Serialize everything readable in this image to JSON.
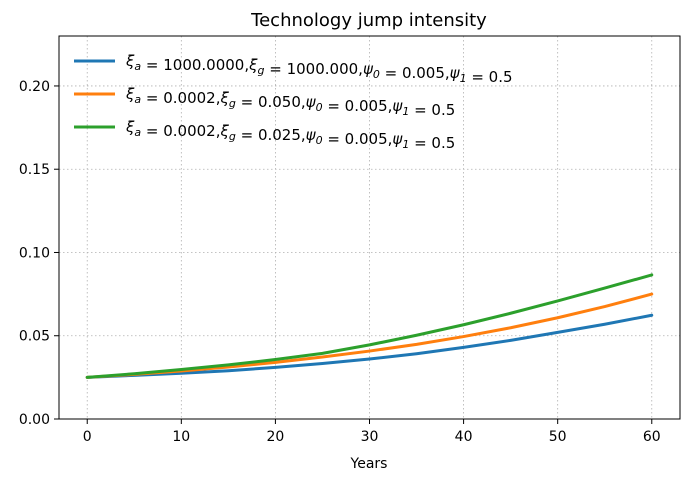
{
  "chart_data": {
    "type": "line",
    "title": "Technology jump intensity",
    "xlabel": "Years",
    "ylabel": "",
    "xlim": [
      -3,
      63
    ],
    "ylim": [
      0,
      0.23
    ],
    "xticks": [
      0,
      10,
      20,
      30,
      40,
      50,
      60
    ],
    "xtick_labels": [
      "0",
      "10",
      "20",
      "30",
      "40",
      "50",
      "60"
    ],
    "yticks": [
      0,
      0.05,
      0.1,
      0.15,
      0.2
    ],
    "ytick_labels": [
      "0.00",
      "0.05",
      "0.10",
      "0.15",
      "0.20"
    ],
    "grid": true,
    "legend_position": "top-left",
    "x": [
      0,
      5,
      10,
      15,
      20,
      25,
      30,
      35,
      40,
      45,
      50,
      55,
      60
    ],
    "series": [
      {
        "name": "ξa = 1000.0000,ξg = 1000.000,ψ0 = 0.005,ψ1 = 0.5",
        "legend_parts": {
          "xa": "1000.0000",
          "xg": "1000.000",
          "p0": "0.005",
          "p1": "0.5"
        },
        "color": "#1f77b4",
        "values": [
          0.025,
          0.0262,
          0.0275,
          0.029,
          0.031,
          0.0333,
          0.036,
          0.0392,
          0.043,
          0.0472,
          0.052,
          0.0569,
          0.0623
        ]
      },
      {
        "name": "ξa = 0.0002,ξg = 0.050,ψ0 = 0.005,ψ1 = 0.5",
        "legend_parts": {
          "xa": "0.0002",
          "xg": "0.050",
          "p0": "0.005",
          "p1": "0.5"
        },
        "color": "#ff7f0e",
        "values": [
          0.025,
          0.0268,
          0.0288,
          0.0312,
          0.034,
          0.0372,
          0.0408,
          0.0448,
          0.0495,
          0.0548,
          0.0608,
          0.0675,
          0.075
        ]
      },
      {
        "name": "ξa = 0.0002,ξg = 0.025,ψ0 = 0.005,ψ1 = 0.5",
        "legend_parts": {
          "xa": "0.0002",
          "xg": "0.025",
          "p0": "0.005",
          "p1": "0.5"
        },
        "color": "#2ca02c",
        "values": [
          0.025,
          0.0272,
          0.0297,
          0.0325,
          0.0357,
          0.0394,
          0.0445,
          0.0503,
          0.0566,
          0.0635,
          0.0709,
          0.0786,
          0.0865
        ]
      }
    ]
  }
}
